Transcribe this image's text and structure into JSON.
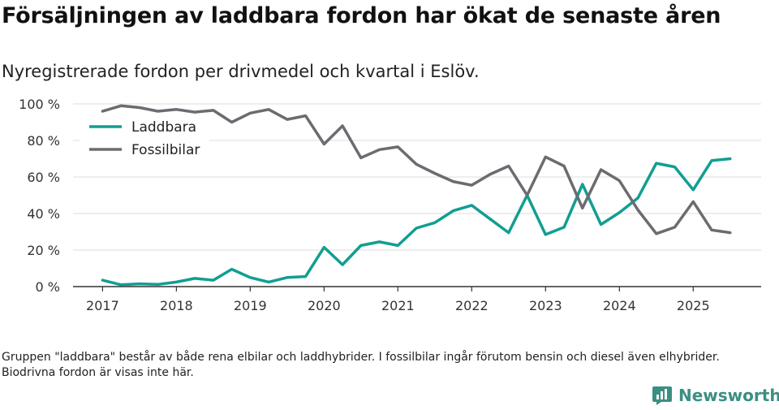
{
  "header": {
    "title": "Försäljningen av laddbara fordon har ökat de senaste åren",
    "subtitle": "Nyregistrerade fordon per drivmedel och kvartal i Eslöv."
  },
  "footer": {
    "note": "Gruppen \"laddbara\" består av både rena elbilar och laddhybrider. I fossilbilar ingår förutom bensin och diesel även elhybrider. Biodrivna fordon är visas inte här.",
    "brand": "Newsworthy"
  },
  "colors": {
    "laddbara": "#119e92",
    "fossil": "#6d6b71",
    "grid": "#dddddd",
    "axis": "#333333",
    "brand": "#3a8f82"
  },
  "chart_data": {
    "type": "line",
    "title": "Försäljningen av laddbara fordon har ökat de senaste åren",
    "subtitle": "Nyregistrerade fordon per drivmedel och kvartal i Eslöv.",
    "xlabel": "",
    "ylabel": "",
    "x": [
      2017.0,
      2017.25,
      2017.5,
      2017.75,
      2018.0,
      2018.25,
      2018.5,
      2018.75,
      2019.0,
      2019.25,
      2019.5,
      2019.75,
      2020.0,
      2020.25,
      2020.5,
      2020.75,
      2021.0,
      2021.25,
      2021.5,
      2021.75,
      2022.0,
      2022.25,
      2022.5,
      2022.75,
      2023.0,
      2023.25,
      2023.5,
      2023.75,
      2024.0,
      2024.25,
      2024.5,
      2024.75,
      2025.0,
      2025.25,
      2025.5
    ],
    "xticks": [
      2017,
      2018,
      2019,
      2020,
      2021,
      2022,
      2023,
      2024,
      2025
    ],
    "xtick_labels": [
      "2017",
      "2018",
      "2019",
      "2020",
      "2021",
      "2022",
      "2023",
      "2024",
      "2025"
    ],
    "xlim": [
      2016.6,
      2025.92
    ],
    "ylim": [
      0,
      100
    ],
    "yticks": [
      0,
      20,
      40,
      60,
      80,
      100
    ],
    "ytick_labels": [
      "0 %",
      "20 %",
      "40 %",
      "60 %",
      "80 %",
      "100 %"
    ],
    "grid": true,
    "legend_position": "top-left",
    "series": [
      {
        "name": "Laddbara",
        "color": "#119e92",
        "values": [
          3.5,
          1,
          1.5,
          1.2,
          2.5,
          4.5,
          3.5,
          9.5,
          5,
          2.5,
          5,
          5.5,
          21.5,
          12,
          22.5,
          24.5,
          22.5,
          32,
          35,
          41.5,
          44.5,
          37,
          29.5,
          50,
          28.5,
          32.5,
          56,
          34,
          40.5,
          48.5,
          67.5,
          65.5,
          53,
          69,
          70
        ]
      },
      {
        "name": "Fossilbilar",
        "color": "#6d6b71",
        "values": [
          96,
          99,
          98,
          96,
          97,
          95.5,
          96.5,
          90,
          95,
          97,
          91.5,
          93.5,
          78,
          88,
          70.5,
          75,
          76.5,
          67,
          62,
          57.5,
          55.5,
          61.5,
          66,
          50,
          71,
          66,
          43,
          64,
          58,
          42,
          29,
          32.5,
          46.5,
          31,
          29.5
        ]
      }
    ]
  }
}
